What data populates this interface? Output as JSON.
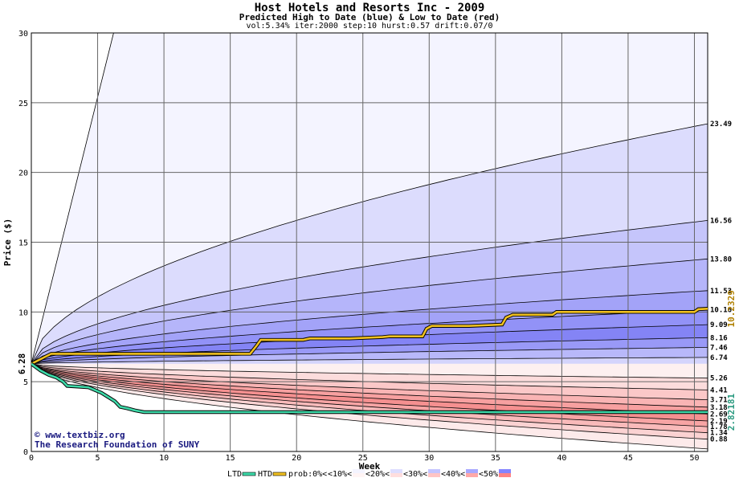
{
  "chart_data": {
    "type": "area",
    "title": "Host Hotels and Resorts Inc - 2009",
    "subtitle": "Predicted High to Date (blue) &  Low to Date (red)",
    "params": "vol:5.34% iter:2000 step:10 hurst:0.57 drift:0.07/0",
    "xlabel": "Week",
    "ylabel": "Price ($)",
    "xlim": [
      0,
      51
    ],
    "ylim": [
      0,
      30
    ],
    "x_ticks": [
      0,
      5,
      10,
      15,
      20,
      25,
      30,
      35,
      40,
      45,
      50
    ],
    "y_ticks": [
      0,
      5,
      10,
      15,
      20,
      25,
      30
    ],
    "grid": true,
    "start_value": 6.28,
    "start_label": "6.28",
    "bands_high": [
      {
        "end": 30,
        "end_week": 6.2,
        "label": ""
      },
      {
        "end": 23.49,
        "label": "23.49"
      },
      {
        "end": 16.56,
        "label": "16.56"
      },
      {
        "end": 13.8,
        "label": "13.80"
      },
      {
        "end": 11.53,
        "label": "11.53"
      },
      {
        "end": 10.16,
        "label": "10.16"
      },
      {
        "end": 9.09,
        "label": "9.09"
      },
      {
        "end": 8.16,
        "label": "8.16"
      },
      {
        "end": 7.46,
        "label": "7.46"
      },
      {
        "end": 6.74,
        "label": "6.74"
      }
    ],
    "bands_low": [
      {
        "end": 5.26,
        "label": "5.26"
      },
      {
        "end": 4.41,
        "label": "4.41"
      },
      {
        "end": 3.71,
        "label": "3.71"
      },
      {
        "end": 3.18,
        "label": "3.18"
      },
      {
        "end": 2.69,
        "label": "2.69"
      },
      {
        "end": 2.19,
        "label": "2.19"
      },
      {
        "end": 1.78,
        "label": "1.78"
      },
      {
        "end": 1.34,
        "label": "1.34"
      },
      {
        "end": 0.88,
        "label": "0.88"
      },
      {
        "end": 0.18,
        "label": ""
      }
    ],
    "htd_value_label": "10.2329",
    "ltd_value_label": "2.82181",
    "htd_series": {
      "name": "HTD",
      "x": [
        0,
        1.5,
        16.5,
        17,
        17.3,
        20.5,
        21,
        24,
        26.5,
        27,
        29.5,
        29.8,
        30.2,
        33,
        35.5,
        35.8,
        36.3,
        39.3,
        39.6,
        45,
        50,
        50.3,
        51
      ],
      "y": [
        6.28,
        7.0,
        7.0,
        7.6,
        8.0,
        8.0,
        8.1,
        8.1,
        8.2,
        8.25,
        8.25,
        8.8,
        9.0,
        9.0,
        9.1,
        9.6,
        9.8,
        9.8,
        10.0,
        10.0,
        10.0,
        10.2,
        10.23
      ]
    },
    "ltd_series": {
      "name": "LTD",
      "x": [
        0,
        0.7,
        1.3,
        1.9,
        2.4,
        2.7,
        3.5,
        4.3,
        4.8,
        5.3,
        5.8,
        6.3,
        6.7,
        7.2,
        7.8,
        8.5,
        10,
        15,
        20,
        30,
        40,
        51
      ],
      "y": [
        6.28,
        5.8,
        5.5,
        5.3,
        5.0,
        4.7,
        4.65,
        4.6,
        4.4,
        4.2,
        3.9,
        3.6,
        3.2,
        3.1,
        2.95,
        2.82,
        2.82,
        2.82,
        2.82,
        2.82,
        2.82,
        2.82
      ]
    },
    "legend": {
      "position": "bottom",
      "items": [
        {
          "label": "LTD",
          "type": "line",
          "color": "#3dd9a8"
        },
        {
          "label": "HTD",
          "type": "line",
          "color": "#f0c020"
        },
        {
          "label": "prob:0%<",
          "type": "swatch",
          "color": "#ffffff"
        },
        {
          "label": "<10%<",
          "type": "swatch",
          "colors": [
            "#f4f4ff",
            "#fff4f4"
          ]
        },
        {
          "label": "<20%<",
          "type": "swatch",
          "colors": [
            "#dedeff",
            "#ffdede"
          ]
        },
        {
          "label": "<30%<",
          "type": "swatch",
          "colors": [
            "#c4c4ff",
            "#ffc4c4"
          ]
        },
        {
          "label": "<40%<",
          "type": "swatch",
          "colors": [
            "#a8a8ff",
            "#ffa8a8"
          ]
        },
        {
          "label": "<50%",
          "type": "swatch",
          "colors": [
            "#8484ff",
            "#ff8484"
          ]
        }
      ]
    },
    "watermark": [
      "© www.textbiz.org",
      "The Research Foundation of SUNY"
    ],
    "colors": {
      "high_bands": [
        "#f4f4ff",
        "#dcdcfd",
        "#c5c5fb",
        "#b5b5fa",
        "#a3a3f8",
        "#9292f7",
        "#8484f5",
        "#9999f7",
        "#b8b8fa",
        "#d4d4fc"
      ],
      "low_bands": [
        "#fdf0f0",
        "#fcdcdc",
        "#fbc8c8",
        "#f9b4b4",
        "#f7a0a0",
        "#f59090",
        "#f7a4a4",
        "#f9baba",
        "#fbd2d2",
        "#fdeaea"
      ],
      "htd": "#f0c020",
      "ltd": "#3dd9a8",
      "htd_label": "#b08000",
      "ltd_label": "#2a9a80"
    }
  }
}
